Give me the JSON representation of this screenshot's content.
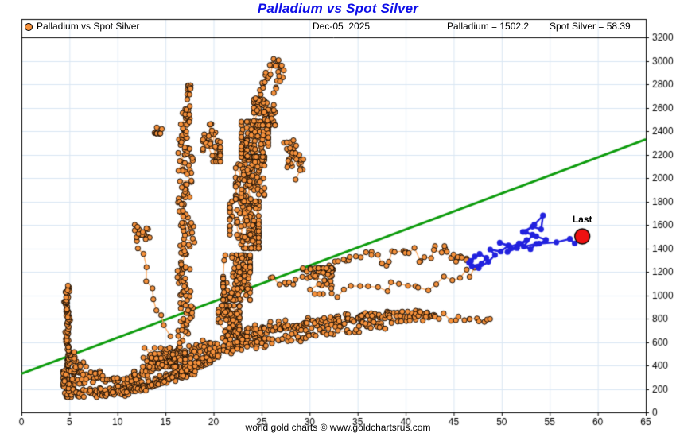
{
  "title": "Palladium vs Spot Silver",
  "header": {
    "legend_label": "Palladium vs Spot Silver",
    "date": "Dec-05  2025",
    "palladium_reading": "Palladium = 1502.2",
    "silver_reading": "Spot Silver = 58.39"
  },
  "footer_text": "world gold charts © www.goldchartsrus.com",
  "colors": {
    "title": "#0f0fe8",
    "orange_fill": "#f6913b",
    "orange_edge": "#000000",
    "orange_line": "#fba85e",
    "green_line": "#0b9b0b",
    "blue_line": "#2121de",
    "red_last": "#ee1111",
    "grid": "#d9e6f3",
    "axis": "#000000",
    "text": "#000000"
  },
  "chart_data": {
    "type": "scatter",
    "title": "Palladium vs Spot Silver",
    "x_series_name": "Spot Silver",
    "y_series_name": "Palladium",
    "xlim": [
      0,
      65
    ],
    "ylim": [
      0,
      3200
    ],
    "x_ticks": [
      0,
      5,
      10,
      15,
      20,
      25,
      30,
      35,
      40,
      45,
      50,
      55,
      60,
      65
    ],
    "y_ticks": [
      0,
      200,
      400,
      600,
      800,
      1000,
      1200,
      1400,
      1600,
      1800,
      2000,
      2200,
      2400,
      2600,
      2800,
      3000,
      3200
    ],
    "grid": true,
    "legend_position": "top-left",
    "y_axis_side": "right",
    "current_values": {
      "palladium": 1502.2,
      "spot_silver": 58.39,
      "date": "Dec-05  2025"
    },
    "green_trendline": {
      "points": [
        [
          0,
          330
        ],
        [
          65,
          2330
        ]
      ]
    },
    "last_point": {
      "x": 58.39,
      "y": 1502.2,
      "label": "Last"
    },
    "blue_recent_path": [
      [
        46.6,
        1278
      ],
      [
        47.2,
        1330
      ],
      [
        46.8,
        1292
      ],
      [
        47.7,
        1352
      ],
      [
        48.4,
        1318
      ],
      [
        47.9,
        1268
      ],
      [
        46.9,
        1248
      ],
      [
        47.6,
        1232
      ],
      [
        48.6,
        1284
      ],
      [
        49.3,
        1342
      ],
      [
        48.8,
        1390
      ],
      [
        49.9,
        1372
      ],
      [
        50.7,
        1424
      ],
      [
        49.8,
        1448
      ],
      [
        50.9,
        1412
      ],
      [
        51.8,
        1442
      ],
      [
        52.6,
        1470
      ],
      [
        51.6,
        1402
      ],
      [
        50.6,
        1368
      ],
      [
        51.9,
        1438
      ],
      [
        53.0,
        1392
      ],
      [
        53.6,
        1438
      ],
      [
        52.3,
        1414
      ],
      [
        53.2,
        1516
      ],
      [
        52.2,
        1540
      ],
      [
        53.2,
        1584
      ],
      [
        54.1,
        1562
      ],
      [
        54.3,
        1680
      ],
      [
        53.4,
        1602
      ],
      [
        52.5,
        1540
      ],
      [
        53.6,
        1502
      ],
      [
        54.6,
        1472
      ],
      [
        53.9,
        1440
      ],
      [
        55.7,
        1452
      ],
      [
        57.1,
        1480
      ],
      [
        57.6,
        1442
      ],
      [
        58.39,
        1502.2
      ]
    ],
    "orange_history_structures": [
      {
        "type": "strand",
        "name": "left-spike",
        "pts": [
          [
            4.8,
            150
          ],
          [
            4.6,
            320
          ],
          [
            5.0,
            480
          ],
          [
            4.7,
            640
          ],
          [
            4.9,
            800
          ],
          [
            4.6,
            930
          ],
          [
            4.8,
            1060
          ]
        ],
        "sx": 0.22,
        "sy": 30,
        "n": 120
      },
      {
        "type": "blob",
        "name": "spike-base",
        "c": [
          4.9,
          240
        ],
        "sx": 0.55,
        "sy": 110,
        "n": 60
      },
      {
        "type": "blob",
        "name": "base-right",
        "c": [
          6.2,
          450
        ],
        "sx": 0.7,
        "sy": 110,
        "n": 22
      },
      {
        "type": "strand",
        "name": "bottom-low-band",
        "pts": [
          [
            5.2,
            160
          ],
          [
            7.5,
            170
          ],
          [
            9.5,
            185
          ],
          [
            11.5,
            215
          ],
          [
            13.5,
            255
          ],
          [
            15.5,
            310
          ],
          [
            17.5,
            370
          ],
          [
            19,
            430
          ],
          [
            20.5,
            500
          ]
        ],
        "sx": 0.35,
        "sy": 38,
        "n": 170
      },
      {
        "type": "strand",
        "name": "bottom-mid-band",
        "pts": [
          [
            6,
            270
          ],
          [
            8,
            300
          ],
          [
            10,
            260
          ],
          [
            12,
            320
          ],
          [
            14,
            390
          ],
          [
            16,
            460
          ],
          [
            18,
            530
          ],
          [
            20,
            590
          ]
        ],
        "sx": 0.45,
        "sy": 50,
        "n": 120
      },
      {
        "type": "strand",
        "name": "bottom-under-band",
        "pts": [
          [
            8.5,
            150
          ],
          [
            10.5,
            165
          ],
          [
            12.5,
            205
          ],
          [
            14.5,
            245
          ],
          [
            16.5,
            305
          ],
          [
            18,
            355
          ]
        ],
        "sx": 0.3,
        "sy": 30,
        "n": 70
      },
      {
        "type": "blob",
        "name": "bottom-knot",
        "c": [
          14.8,
          470
        ],
        "sx": 2.2,
        "sy": 80,
        "n": 95
      },
      {
        "type": "strand",
        "name": "rising-band",
        "pts": [
          [
            17,
            380
          ],
          [
            19,
            450
          ],
          [
            21,
            530
          ],
          [
            23,
            590
          ],
          [
            25,
            650
          ]
        ],
        "sx": 0.8,
        "sy": 55,
        "n": 90
      },
      {
        "type": "strand",
        "name": "left-column",
        "pts": [
          [
            16.8,
            600
          ],
          [
            17.2,
            900
          ],
          [
            16.7,
            1200
          ],
          [
            17.3,
            1500
          ],
          [
            16.8,
            1800
          ],
          [
            17.2,
            2100
          ],
          [
            17.0,
            2350
          ],
          [
            17.0,
            2600
          ]
        ],
        "sx": 0.75,
        "sy": 60,
        "n": 170
      },
      {
        "type": "blob",
        "name": "column-top-tip",
        "c": [
          17.1,
          2720
        ],
        "sx": 0.5,
        "sy": 70,
        "n": 12
      },
      {
        "type": "blob",
        "name": "topleft-spur",
        "c": [
          14.3,
          2450
        ],
        "sx": 0.55,
        "sy": 70,
        "n": 11
      },
      {
        "type": "blob",
        "name": "left-mid-cluster",
        "c": [
          12.6,
          1510
        ],
        "sx": 0.8,
        "sy": 90,
        "n": 16
      },
      {
        "type": "strand",
        "name": "left-mid-link",
        "pts": [
          [
            12.3,
            1430
          ],
          [
            13.2,
            1150
          ],
          [
            14.2,
            880
          ],
          [
            15.3,
            650
          ]
        ],
        "sx": 0.3,
        "sy": 40,
        "n": 10
      },
      {
        "type": "blob",
        "name": "central-mass-1",
        "c": [
          21.6,
          780
        ],
        "sx": 1.1,
        "sy": 130,
        "n": 80
      },
      {
        "type": "blob",
        "name": "central-mass-2",
        "c": [
          22.4,
          1150
        ],
        "sx": 1.4,
        "sy": 190,
        "n": 120
      },
      {
        "type": "blob",
        "name": "central-mass-3",
        "c": [
          23.2,
          1600
        ],
        "sx": 1.5,
        "sy": 200,
        "n": 130
      },
      {
        "type": "blob",
        "name": "central-mass-4",
        "c": [
          23.8,
          2000
        ],
        "sx": 1.5,
        "sy": 180,
        "n": 120
      },
      {
        "type": "blob",
        "name": "central-mass-5",
        "c": [
          24.3,
          2330
        ],
        "sx": 1.4,
        "sy": 150,
        "n": 95
      },
      {
        "type": "blob",
        "name": "central-mass-6",
        "c": [
          25.3,
          2560
        ],
        "sx": 1.1,
        "sy": 110,
        "n": 60
      },
      {
        "type": "blob",
        "name": "mass-left-bridge",
        "c": [
          19.8,
          2300
        ],
        "sx": 0.9,
        "sy": 160,
        "n": 45
      },
      {
        "type": "strand",
        "name": "top-spike",
        "pts": [
          [
            24.3,
            2650
          ],
          [
            25.2,
            2800
          ],
          [
            26.0,
            2930
          ],
          [
            26.6,
            3000
          ],
          [
            27.1,
            2900
          ],
          [
            26.6,
            2760
          ]
        ],
        "sx": 0.4,
        "sy": 55,
        "n": 34
      },
      {
        "type": "blob",
        "name": "right-spur",
        "c": [
          28.2,
          2180
        ],
        "sx": 0.9,
        "sy": 130,
        "n": 26
      },
      {
        "type": "strand",
        "name": "right-spur-link",
        "pts": [
          [
            27.2,
            2350
          ],
          [
            28.6,
            2280
          ],
          [
            29.3,
            2150
          ],
          [
            28.6,
            2000
          ]
        ],
        "sx": 0.3,
        "sy": 50,
        "n": 8
      },
      {
        "type": "strand",
        "name": "mid-arm",
        "pts": [
          [
            26,
            1150
          ],
          [
            28,
            1090
          ],
          [
            30,
            1160
          ],
          [
            32,
            1240
          ],
          [
            34,
            1310
          ],
          [
            36,
            1360
          ],
          [
            38,
            1300
          ],
          [
            40,
            1390
          ],
          [
            42,
            1330
          ],
          [
            44,
            1430
          ],
          [
            45.5,
            1290
          ],
          [
            46.3,
            1310
          ]
        ],
        "sx": 0.45,
        "sy": 55,
        "n": 60
      },
      {
        "type": "blob",
        "name": "mid-arm-knot",
        "c": [
          30.8,
          1120
        ],
        "sx": 1.5,
        "sy": 110,
        "n": 45
      },
      {
        "type": "strand",
        "name": "mid-arm-lower",
        "pts": [
          [
            33,
            1000
          ],
          [
            36,
            1060
          ],
          [
            39,
            1090
          ],
          [
            42,
            1060
          ],
          [
            45,
            1130
          ],
          [
            47.4,
            1210
          ]
        ],
        "sx": 0.4,
        "sy": 45,
        "n": 20
      },
      {
        "type": "strand",
        "name": "lower-right-band",
        "pts": [
          [
            21,
            610
          ],
          [
            23,
            660
          ],
          [
            25,
            705
          ],
          [
            27,
            725
          ],
          [
            29,
            745
          ],
          [
            31,
            765
          ],
          [
            33,
            785
          ],
          [
            35,
            795
          ],
          [
            37,
            805
          ],
          [
            39,
            815
          ],
          [
            41,
            825
          ],
          [
            43,
            835
          ]
        ],
        "sx": 0.5,
        "sy": 60,
        "n": 210
      },
      {
        "type": "strand",
        "name": "lower-right-tail",
        "pts": [
          [
            43,
            835
          ],
          [
            44.8,
            805
          ],
          [
            46.3,
            815
          ],
          [
            47.6,
            790
          ],
          [
            48.7,
            795
          ]
        ],
        "sx": 0.3,
        "sy": 30,
        "n": 14
      },
      {
        "type": "strand",
        "name": "lower-right-under",
        "pts": [
          [
            23,
            560
          ],
          [
            26,
            600
          ],
          [
            29,
            650
          ],
          [
            32,
            690
          ],
          [
            35,
            720
          ],
          [
            38,
            740
          ]
        ],
        "sx": 0.5,
        "sy": 40,
        "n": 60
      }
    ]
  }
}
